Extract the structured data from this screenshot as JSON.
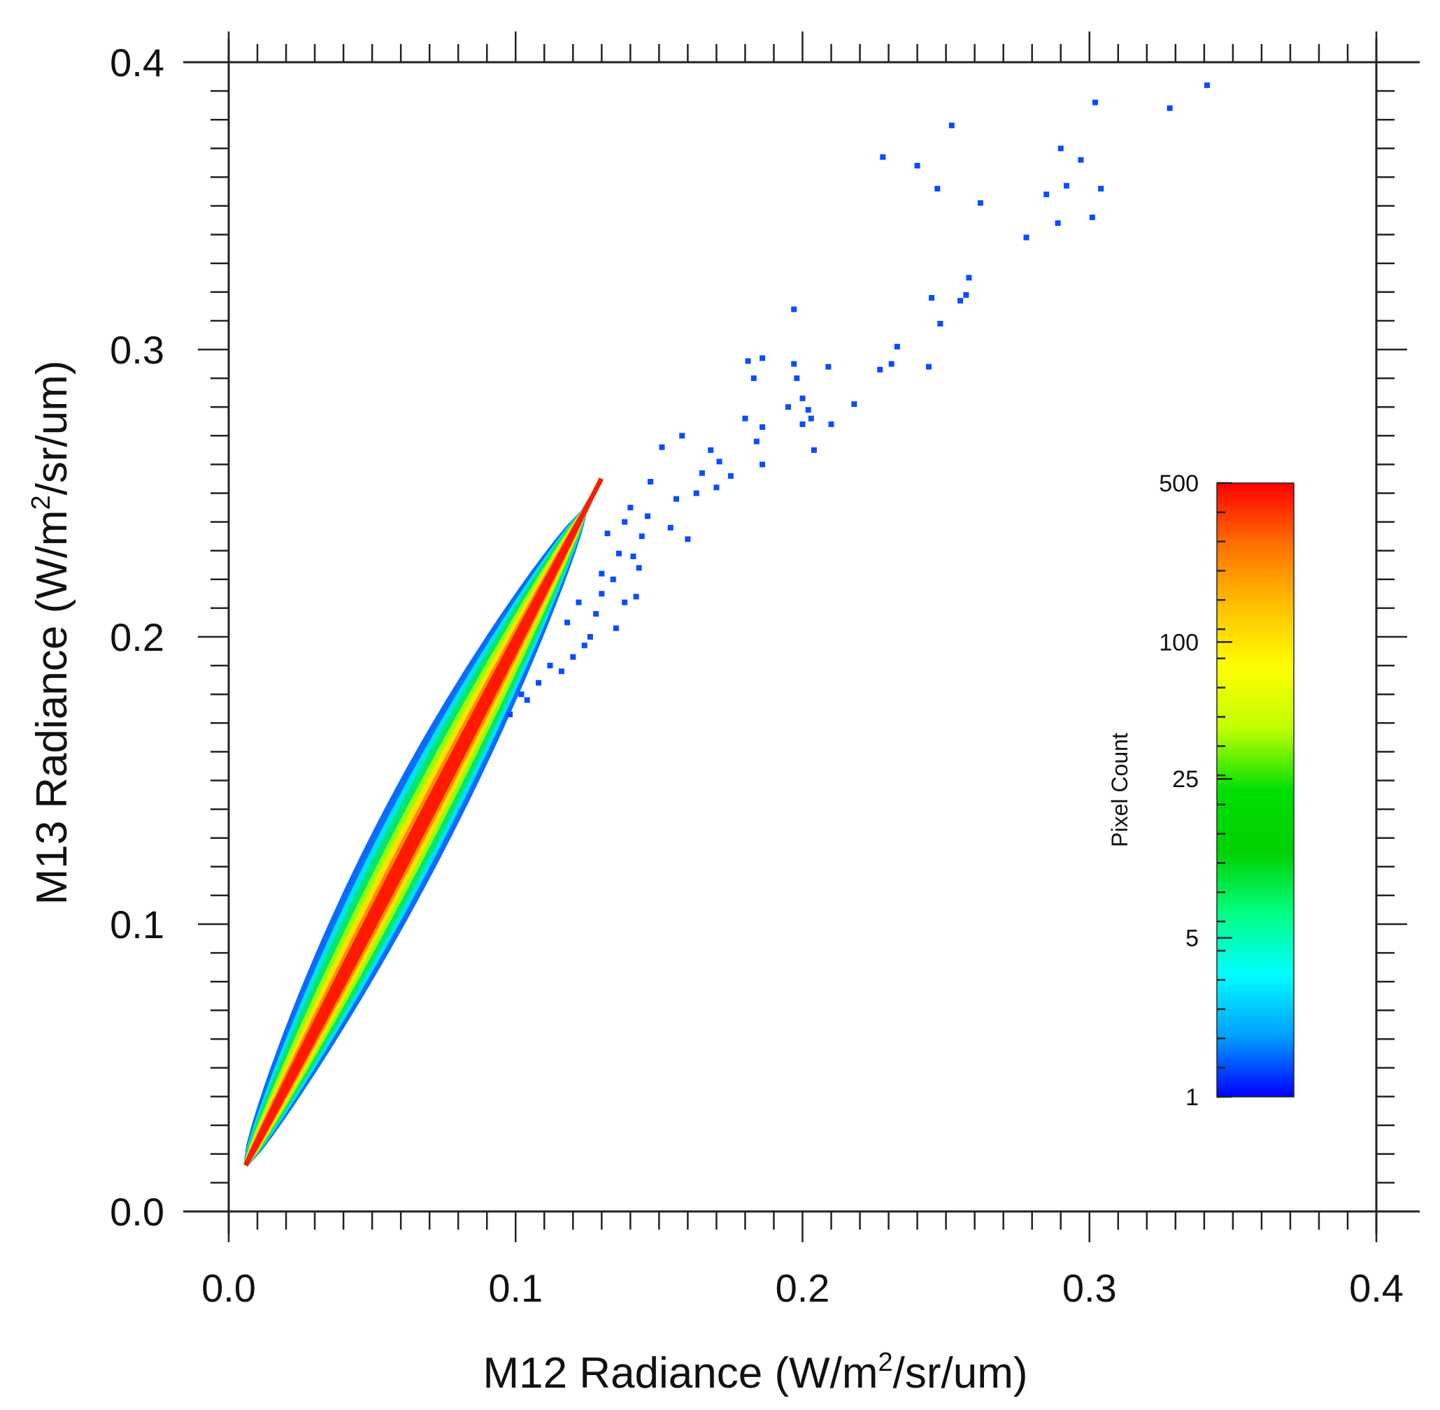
{
  "chart_data": {
    "type": "scatter",
    "subtype": "density-scatter",
    "title": "",
    "xlabel": {
      "prefix": "M12 Radiance (W/m",
      "sup": "2",
      "suffix": "/sr/um)"
    },
    "ylabel": {
      "prefix": "M13 Radiance (W/m",
      "sup": "2",
      "suffix": "/sr/um)"
    },
    "xlim": [
      0.0,
      0.4
    ],
    "ylim": [
      0.0,
      0.4
    ],
    "x_tick_labels": [
      "0.0",
      "0.1",
      "0.2",
      "0.3",
      "0.4"
    ],
    "y_tick_labels": [
      "0.0",
      "0.1",
      "0.2",
      "0.3",
      "0.4"
    ],
    "x_ticks": [
      0.0,
      0.1,
      0.2,
      0.3,
      0.4
    ],
    "y_ticks": [
      0.0,
      0.1,
      0.2,
      0.3,
      0.4
    ],
    "minor_tick_step": 0.01,
    "density_band": {
      "description": "dense ridge of points from low to high radiance, colored by pixel count",
      "ridge_start": [
        0.006,
        0.016
      ],
      "ridge_end": [
        0.13,
        0.255
      ]
    },
    "outliers": [
      [
        0.341,
        0.392
      ],
      [
        0.328,
        0.384
      ],
      [
        0.302,
        0.386
      ],
      [
        0.252,
        0.378
      ],
      [
        0.228,
        0.367
      ],
      [
        0.24,
        0.364
      ],
      [
        0.247,
        0.356
      ],
      [
        0.29,
        0.37
      ],
      [
        0.297,
        0.366
      ],
      [
        0.292,
        0.357
      ],
      [
        0.304,
        0.356
      ],
      [
        0.285,
        0.354
      ],
      [
        0.262,
        0.351
      ],
      [
        0.289,
        0.344
      ],
      [
        0.301,
        0.346
      ],
      [
        0.278,
        0.339
      ],
      [
        0.258,
        0.325
      ],
      [
        0.245,
        0.318
      ],
      [
        0.257,
        0.319
      ],
      [
        0.255,
        0.317
      ],
      [
        0.248,
        0.309
      ],
      [
        0.197,
        0.314
      ],
      [
        0.186,
        0.297
      ],
      [
        0.181,
        0.296
      ],
      [
        0.197,
        0.295
      ],
      [
        0.209,
        0.294
      ],
      [
        0.233,
        0.301
      ],
      [
        0.231,
        0.295
      ],
      [
        0.227,
        0.293
      ],
      [
        0.244,
        0.294
      ],
      [
        0.183,
        0.29
      ],
      [
        0.198,
        0.29
      ],
      [
        0.2,
        0.283
      ],
      [
        0.195,
        0.28
      ],
      [
        0.202,
        0.279
      ],
      [
        0.218,
        0.281
      ],
      [
        0.18,
        0.276
      ],
      [
        0.186,
        0.273
      ],
      [
        0.2,
        0.274
      ],
      [
        0.203,
        0.276
      ],
      [
        0.21,
        0.274
      ],
      [
        0.184,
        0.268
      ],
      [
        0.204,
        0.265
      ],
      [
        0.158,
        0.27
      ],
      [
        0.151,
        0.266
      ],
      [
        0.168,
        0.265
      ],
      [
        0.186,
        0.26
      ],
      [
        0.171,
        0.261
      ],
      [
        0.165,
        0.257
      ],
      [
        0.175,
        0.256
      ],
      [
        0.147,
        0.254
      ],
      [
        0.156,
        0.248
      ],
      [
        0.163,
        0.25
      ],
      [
        0.17,
        0.252
      ],
      [
        0.146,
        0.242
      ],
      [
        0.14,
        0.245
      ],
      [
        0.138,
        0.24
      ],
      [
        0.154,
        0.238
      ],
      [
        0.16,
        0.234
      ],
      [
        0.144,
        0.235
      ],
      [
        0.132,
        0.236
      ],
      [
        0.136,
        0.229
      ],
      [
        0.141,
        0.228
      ],
      [
        0.134,
        0.22
      ],
      [
        0.143,
        0.224
      ],
      [
        0.13,
        0.215
      ],
      [
        0.128,
        0.208
      ],
      [
        0.138,
        0.212
      ],
      [
        0.142,
        0.214
      ],
      [
        0.126,
        0.2
      ],
      [
        0.135,
        0.203
      ],
      [
        0.12,
        0.193
      ],
      [
        0.124,
        0.197
      ],
      [
        0.116,
        0.188
      ],
      [
        0.108,
        0.184
      ],
      [
        0.104,
        0.178
      ],
      [
        0.098,
        0.173
      ],
      [
        0.102,
        0.18
      ],
      [
        0.112,
        0.19
      ],
      [
        0.118,
        0.205
      ],
      [
        0.122,
        0.212
      ],
      [
        0.13,
        0.222
      ]
    ],
    "colorbar": {
      "title": "Pixel Count",
      "scale": "log",
      "labels": [
        "500",
        "100",
        "25",
        "5",
        "1"
      ],
      "values": [
        500,
        100,
        25,
        5,
        1
      ],
      "colors": [
        "#ff0000",
        "#ff7000",
        "#ffc000",
        "#ffff00",
        "#c0ff00",
        "#00e000",
        "#00d000",
        "#00ff80",
        "#00ffff",
        "#00a0ff",
        "#0000ff"
      ]
    },
    "point_color": "#0a4cff"
  }
}
